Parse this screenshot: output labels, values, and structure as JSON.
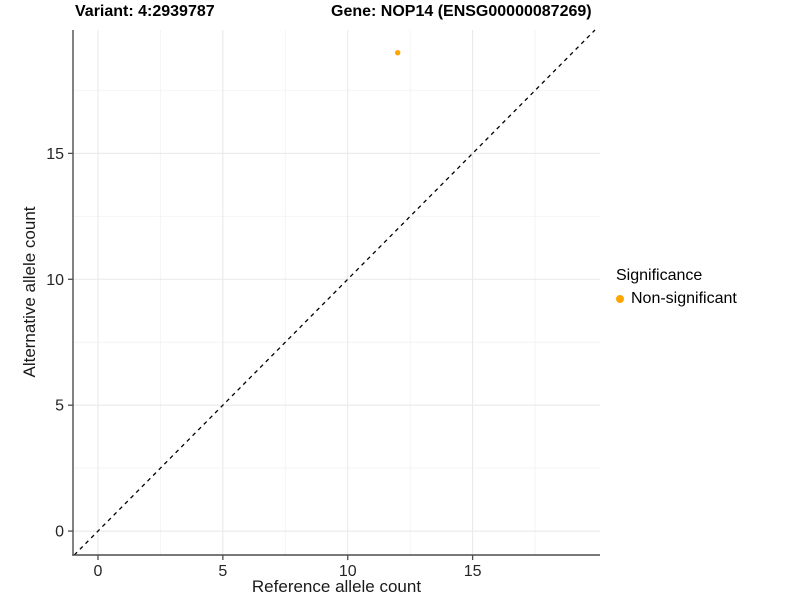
{
  "header": {
    "variant_title": "Variant: 4:2939787",
    "gene_title": "Gene: NOP14 (ENSG00000087269)"
  },
  "chart_data": {
    "type": "scatter",
    "xlabel": "Reference allele count",
    "ylabel": "Alternative allele count",
    "xlim": [
      -1.0,
      20.1
    ],
    "ylim": [
      -0.95,
      19.9
    ],
    "x_ticks": [
      0,
      5,
      10,
      15
    ],
    "y_ticks": [
      0,
      5,
      10,
      15
    ],
    "x_minor": [
      2.5,
      7.5,
      12.5,
      17.5
    ],
    "y_minor": [
      2.5,
      7.5,
      12.5,
      17.5
    ],
    "grid": true,
    "points": [
      {
        "x": 12,
        "y": 19,
        "series": "Non-significant",
        "color": "#FFA500"
      }
    ],
    "reference_line": {
      "equation": "y = x",
      "style": "dashed",
      "color": "#000000"
    },
    "legend": {
      "title": "Significance",
      "position": "right",
      "items": [
        {
          "label": "Non-significant",
          "color": "#FFA500"
        }
      ]
    }
  },
  "colors": {
    "background": "#ffffff",
    "major_grid": "#e8e8e8",
    "minor_grid": "#f4f4f4",
    "axis_line": "#4d4d4d",
    "tick_label": "#262626",
    "point": "#FFA500"
  }
}
